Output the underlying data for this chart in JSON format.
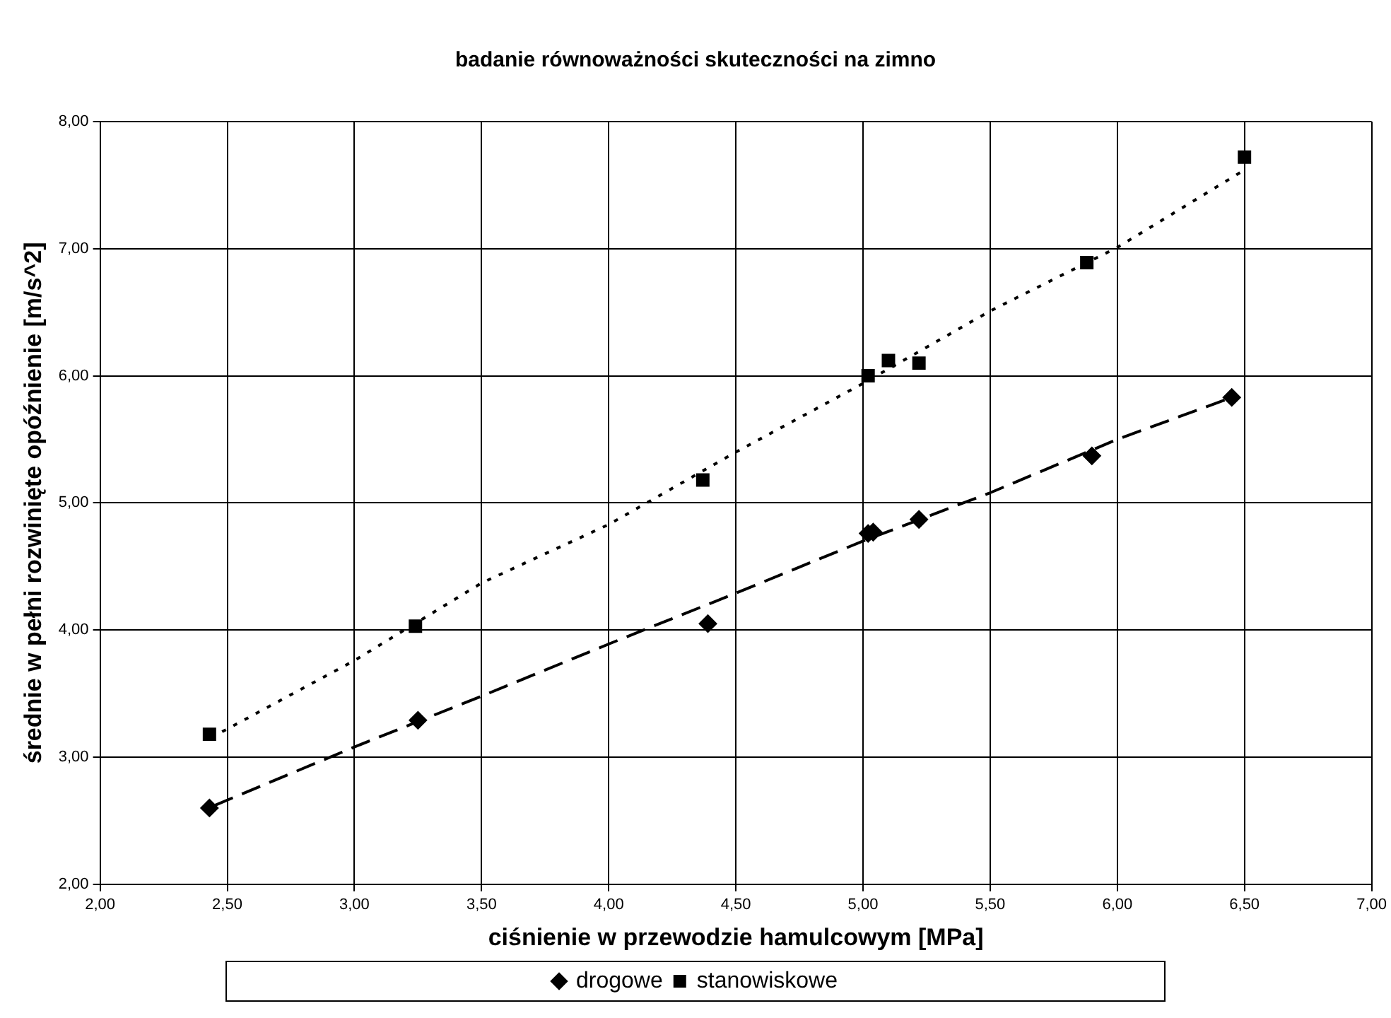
{
  "chart_data": {
    "type": "scatter",
    "title": "badanie równoważności skuteczności na zimno",
    "xlabel": "ciśnienie w przewodzie hamulcowym [MPa]",
    "ylabel": "średnie w pełni rozwinięte opóźnienie [m/s^2]",
    "xlim": [
      2,
      7
    ],
    "ylim": [
      2,
      8
    ],
    "xticks": [
      {
        "value": 2,
        "label": "2,00"
      },
      {
        "value": 2.5,
        "label": "2,50"
      },
      {
        "value": 3,
        "label": "3,00"
      },
      {
        "value": 3.5,
        "label": "3,50"
      },
      {
        "value": 4,
        "label": "4,00"
      },
      {
        "value": 4.5,
        "label": "4,50"
      },
      {
        "value": 5,
        "label": "5,00"
      },
      {
        "value": 5.5,
        "label": "5,50"
      },
      {
        "value": 6,
        "label": "6,00"
      },
      {
        "value": 6.5,
        "label": "6,50"
      },
      {
        "value": 7,
        "label": "7,00"
      }
    ],
    "yticks": [
      {
        "value": 2,
        "label": "2,00"
      },
      {
        "value": 3,
        "label": "3,00"
      },
      {
        "value": 4,
        "label": "4,00"
      },
      {
        "value": 5,
        "label": "5,00"
      },
      {
        "value": 6,
        "label": "6,00"
      },
      {
        "value": 7,
        "label": "7,00"
      },
      {
        "value": 8,
        "label": "8,00"
      }
    ],
    "grid": true,
    "legend": "bottom",
    "series": [
      {
        "name": "drogowe",
        "color": "#000000",
        "marker": "diamond",
        "x": [
          2.43,
          3.25,
          4.39,
          5.02,
          5.04,
          5.22,
          5.9,
          6.45
        ],
        "values": [
          2.6,
          3.29,
          4.05,
          4.76,
          4.77,
          4.87,
          5.37,
          5.83
        ]
      },
      {
        "name": "stanowiskowe",
        "color": "#000000",
        "marker": "square",
        "x": [
          2.43,
          3.24,
          4.37,
          5.02,
          5.1,
          5.22,
          5.88,
          6.5
        ],
        "values": [
          3.18,
          4.03,
          5.18,
          6.0,
          6.12,
          6.1,
          6.89,
          7.72
        ]
      },
      {
        "type": "line",
        "color": "#000000",
        "marker": "none",
        "line_style": "dashed",
        "x": [
          2.45,
          3.0,
          3.5,
          4.0,
          4.5,
          5.0,
          5.5,
          6.0,
          6.45
        ],
        "values": [
          2.62,
          3.08,
          3.48,
          3.89,
          4.29,
          4.7,
          5.08,
          5.5,
          5.83
        ]
      },
      {
        "type": "line",
        "color": "#000000",
        "marker": "none",
        "line_style": "dotted",
        "x": [
          2.48,
          3.0,
          3.5,
          4.0,
          4.5,
          5.0,
          5.5,
          6.0,
          6.5
        ],
        "values": [
          3.2,
          3.76,
          4.37,
          4.83,
          5.4,
          5.94,
          6.51,
          7.01,
          7.62
        ]
      }
    ]
  }
}
